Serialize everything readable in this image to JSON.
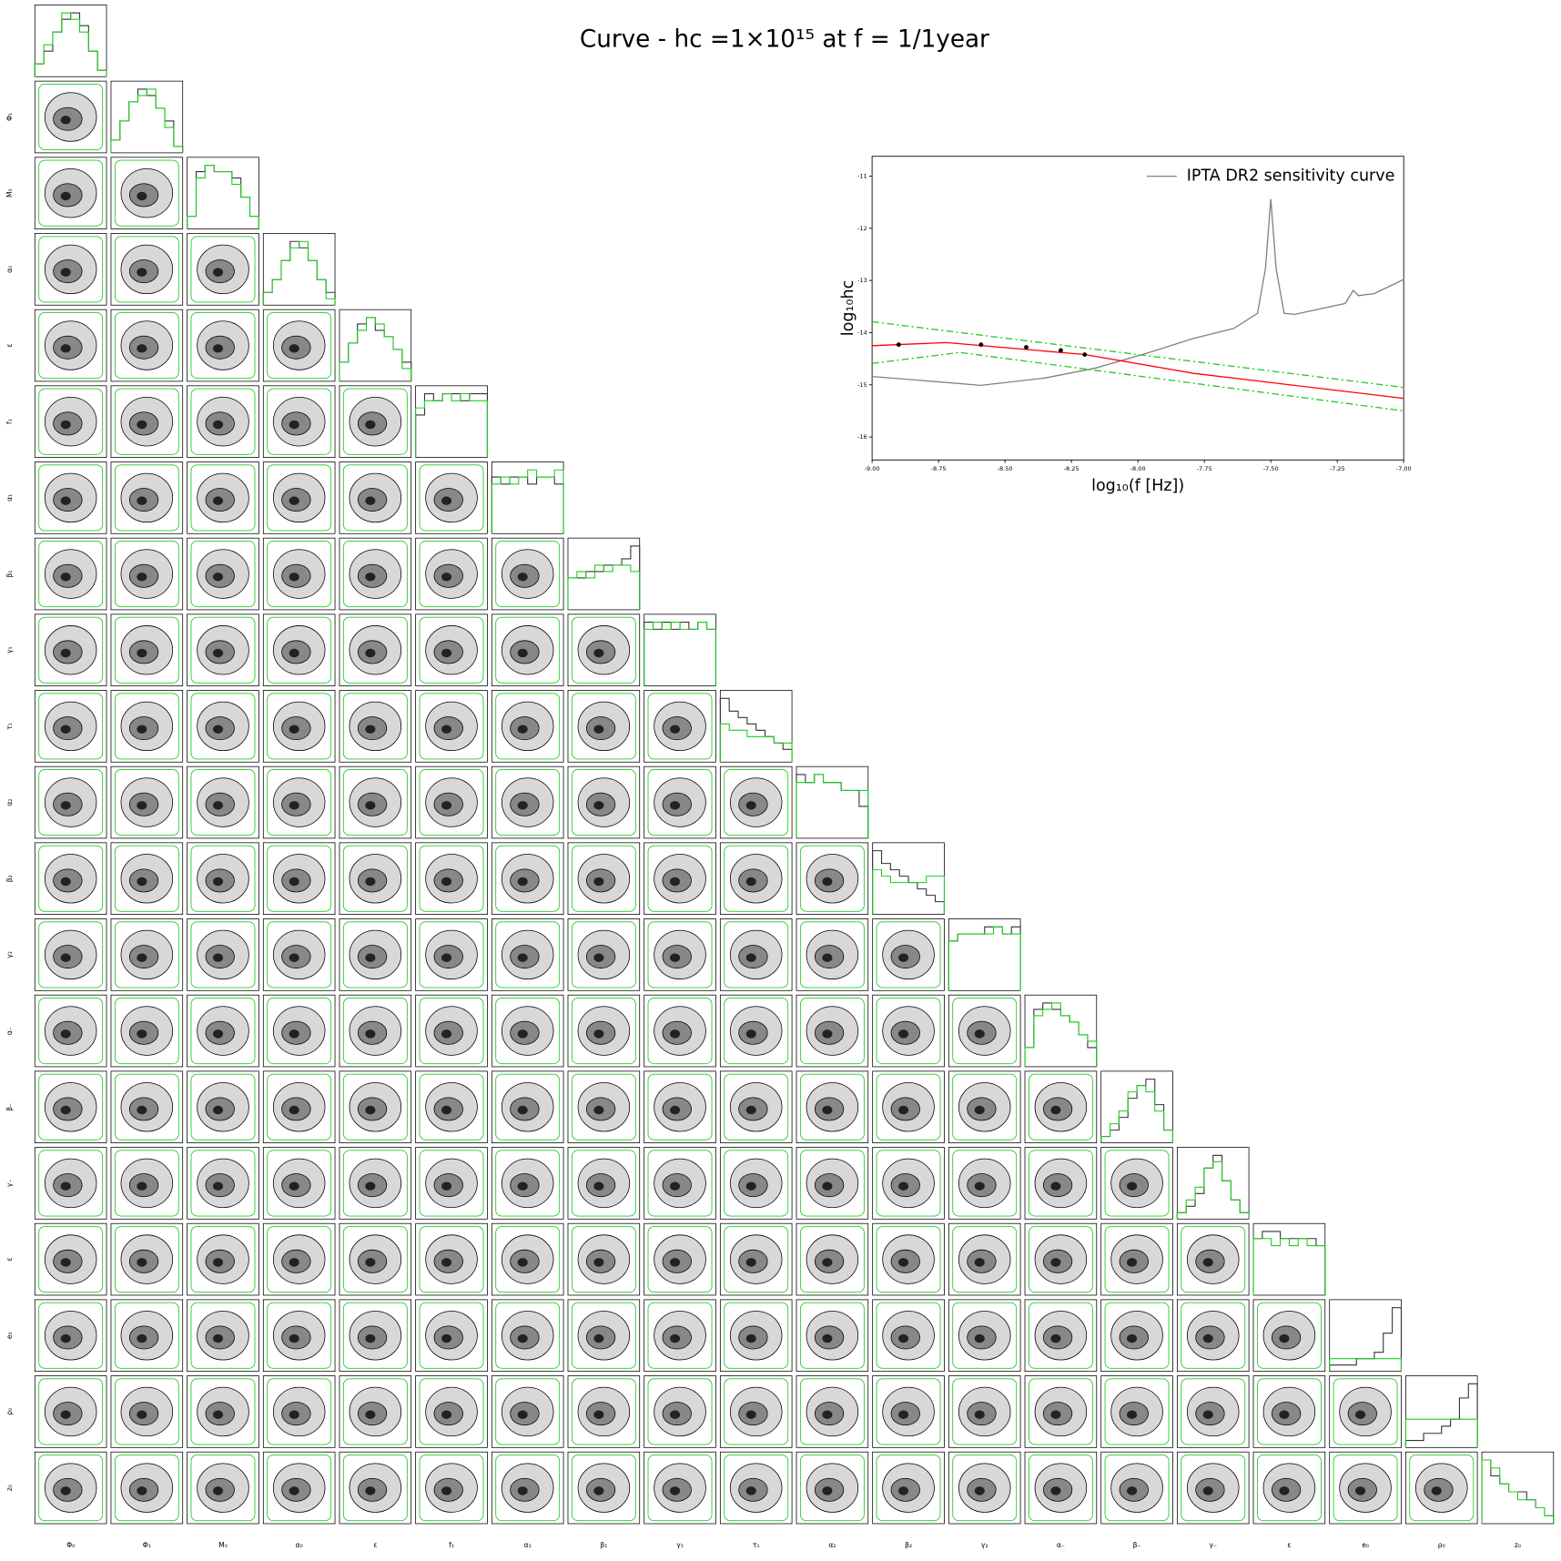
{
  "chart_data": [
    {
      "type": "line",
      "title": "Curve - hc =1×10¹⁵ at f = 1/1year",
      "x_label": "log₁₀(f [Hz])",
      "y_label": "log₁₀hc",
      "xlim": [
        -9,
        -7
      ],
      "ylim": [
        -16.44,
        -10.62
      ],
      "xticks": [
        {
          "value": -9,
          "label": "-9.00"
        },
        {
          "value": -8.75,
          "label": "-8.75"
        },
        {
          "value": -8.5,
          "label": "-8.50"
        },
        {
          "value": -8.25,
          "label": "-8.25"
        },
        {
          "value": -8,
          "label": "-8.00"
        },
        {
          "value": -7.75,
          "label": "-7.75"
        },
        {
          "value": -7.5,
          "label": "-7.50"
        },
        {
          "value": -7.25,
          "label": "-7.25"
        },
        {
          "value": -7,
          "label": "-7.00"
        }
      ],
      "yticks": [
        -16,
        -15,
        -14,
        -13,
        -12,
        -11
      ],
      "legend": "upper right",
      "series": [
        {
          "name": "IPTA DR2 sensitivity curve",
          "color": "#808080",
          "style": "solid",
          "x": [
            -9,
            -8.59,
            -8.35,
            -8.16,
            -7.97,
            -7.79,
            -7.64,
            -7.55,
            -7.52,
            -7.5,
            -7.48,
            -7.45,
            -7.41,
            -7.22,
            -7.19,
            -7.17,
            -7.11,
            -7
          ],
          "values": [
            -14.84,
            -15.01,
            -14.87,
            -14.68,
            -14.4,
            -14.11,
            -13.92,
            -13.63,
            -12.77,
            -11.44,
            -12.77,
            -13.63,
            -13.65,
            -13.44,
            -13.19,
            -13.29,
            -13.25,
            -12.98
          ]
        },
        {
          "color": "#ff0000",
          "style": "solid",
          "x": [
            -9,
            -8.72,
            -8.2,
            -7.79,
            -7
          ],
          "values": [
            -14.25,
            -14.19,
            -14.42,
            -14.78,
            -15.26
          ]
        },
        {
          "color": "#22cc22",
          "style": "dashdot",
          "x": [
            -9,
            -7
          ],
          "values": [
            -13.79,
            -15.05
          ]
        },
        {
          "color": "#22cc22",
          "style": "dashdot",
          "x": [
            -9,
            -8.67,
            -7
          ],
          "values": [
            -14.59,
            -14.38,
            -15.5
          ]
        },
        {
          "color": "#000000",
          "style": "markers",
          "x": [
            -8.9,
            -8.59,
            -8.42,
            -8.29,
            -8.2
          ],
          "values": [
            -14.23,
            -14.23,
            -14.28,
            -14.34,
            -14.42
          ]
        }
      ]
    },
    {
      "type": "corner",
      "parameters": [
        "Φ₀",
        "Φ₁",
        "M₀",
        "α₀",
        "ε",
        "f₁",
        "α₁",
        "β₁",
        "γ₁",
        "τ₁",
        "α₂",
        "β₂",
        "γ₂",
        "α₋",
        "β₋",
        "γ₋",
        "ε",
        "e₀",
        "ρ₀",
        "z₀"
      ],
      "series": [
        {
          "color": "#333333",
          "values": [
            [
              2,
              4,
              7,
              9,
              10,
              8,
              4,
              1
            ],
            [
              2,
              5,
              8,
              10,
              9,
              7,
              5,
              1
            ],
            [
              2,
              9,
              10,
              9,
              9,
              8,
              5,
              2
            ],
            [
              2,
              4,
              7,
              10,
              9,
              7,
              4,
              2
            ],
            [
              3,
              6,
              9,
              10,
              8,
              7,
              5,
              3
            ],
            [
              6,
              9,
              8,
              9,
              9,
              8,
              9,
              9
            ],
            [
              8,
              7,
              8,
              8,
              7,
              8,
              8,
              7
            ],
            [
              5,
              5,
              6,
              6,
              7,
              7,
              8,
              10
            ],
            [
              9,
              8,
              9,
              8,
              9,
              8,
              9,
              8
            ],
            [
              10,
              8,
              7,
              6,
              5,
              4,
              3,
              2
            ],
            [
              8,
              7,
              8,
              7,
              7,
              6,
              6,
              4
            ],
            [
              10,
              8,
              7,
              6,
              5,
              4,
              3,
              2
            ],
            [
              7,
              8,
              8,
              8,
              9,
              9,
              8,
              9
            ],
            [
              3,
              9,
              10,
              9,
              8,
              7,
              5,
              3
            ],
            [
              1,
              2,
              4,
              7,
              9,
              10,
              6,
              2
            ],
            [
              1,
              2,
              4,
              8,
              10,
              6,
              3,
              1
            ],
            [
              8,
              9,
              9,
              8,
              8,
              8,
              8,
              7
            ],
            [
              1,
              1,
              1,
              2,
              2,
              3,
              6,
              10
            ],
            [
              1,
              1,
              2,
              2,
              3,
              4,
              7,
              9
            ],
            [
              8,
              6,
              5,
              4,
              4,
              3,
              2,
              1
            ]
          ]
        },
        {
          "color": "#22cc22",
          "values": [
            [
              2,
              5,
              7,
              10,
              9,
              7,
              4,
              1
            ],
            [
              2,
              5,
              8,
              9,
              10,
              7,
              4,
              1
            ],
            [
              2,
              8,
              10,
              9,
              9,
              7,
              5,
              2
            ],
            [
              2,
              4,
              7,
              9,
              10,
              7,
              4,
              1
            ],
            [
              3,
              6,
              8,
              10,
              9,
              7,
              5,
              2
            ],
            [
              7,
              8,
              8,
              9,
              8,
              9,
              8,
              8
            ],
            [
              7,
              8,
              7,
              8,
              9,
              8,
              8,
              9
            ],
            [
              5,
              6,
              5,
              7,
              6,
              7,
              7,
              6
            ],
            [
              8,
              9,
              8,
              9,
              8,
              8,
              9,
              8
            ],
            [
              6,
              5,
              5,
              4,
              4,
              4,
              3,
              3
            ],
            [
              7,
              7,
              8,
              7,
              7,
              6,
              6,
              6
            ],
            [
              7,
              6,
              5,
              5,
              5,
              5,
              6,
              6
            ],
            [
              7,
              8,
              8,
              8,
              8,
              9,
              8,
              8
            ],
            [
              3,
              8,
              9,
              10,
              8,
              7,
              5,
              4
            ],
            [
              1,
              3,
              5,
              8,
              9,
              8,
              5,
              2
            ],
            [
              1,
              3,
              5,
              8,
              9,
              6,
              3,
              1
            ],
            [
              8,
              8,
              7,
              8,
              7,
              8,
              7,
              7
            ],
            [
              2,
              2,
              2,
              2,
              2,
              2,
              2,
              2
            ],
            [
              4,
              4,
              4,
              4,
              4,
              4,
              4,
              4
            ],
            [
              8,
              7,
              5,
              4,
              3,
              3,
              2,
              1
            ]
          ]
        }
      ]
    }
  ]
}
